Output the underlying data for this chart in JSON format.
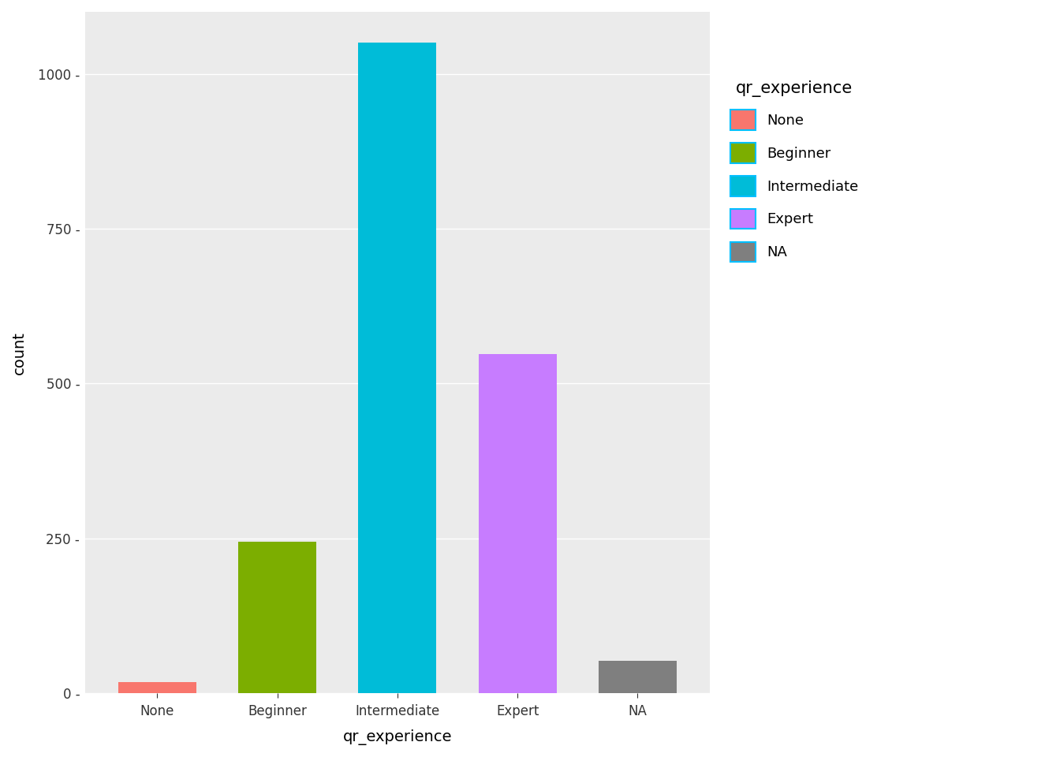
{
  "categories": [
    "None",
    "Beginner",
    "Intermediate",
    "Expert",
    "NA"
  ],
  "values": [
    18,
    245,
    1050,
    548,
    52
  ],
  "bar_colors": [
    "#F8766D",
    "#7CAE00",
    "#00BCD8",
    "#C77CFF",
    "#7F7F7F"
  ],
  "legend_title": "qr_experience",
  "legend_labels": [
    "None",
    "Beginner",
    "Intermediate",
    "Expert",
    "NA"
  ],
  "xlabel": "qr_experience",
  "ylabel": "count",
  "ylim": [
    0,
    1100
  ],
  "yticks": [
    0,
    250,
    500,
    750,
    1000
  ],
  "background_color": "#EBEBEB",
  "grid_color": "#FFFFFF",
  "axis_label_fontsize": 14,
  "tick_fontsize": 12,
  "legend_fontsize": 13,
  "bar_width": 0.65,
  "legend_edge_color": "#00BFFF"
}
